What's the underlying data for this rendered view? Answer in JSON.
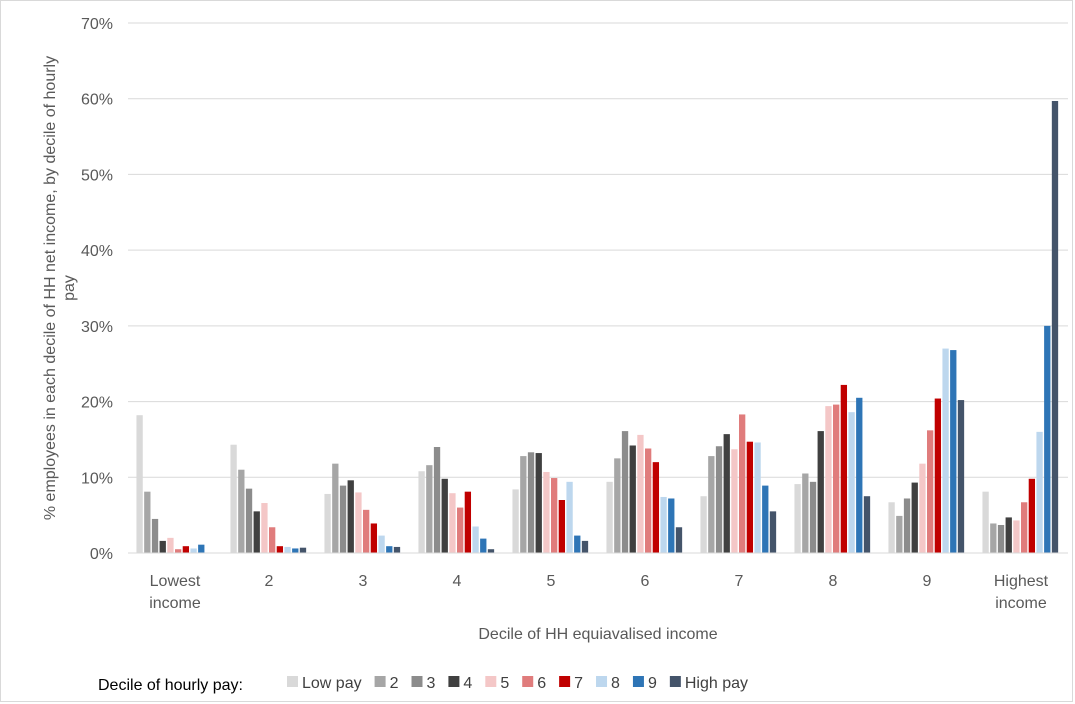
{
  "chart_data": {
    "type": "bar",
    "xlabel": "Decile of HH equiavalised income",
    "ylabel": "% employees in each decile of HH net income, by decile of hourly pay",
    "ylim": [
      0,
      70
    ],
    "yticks": [
      "0%",
      "10%",
      "20%",
      "30%",
      "40%",
      "50%",
      "60%",
      "70%"
    ],
    "grid": true,
    "legend_title": "Decile of hourly pay:",
    "legend_position": "bottom",
    "categories": [
      [
        "Lowest",
        "income"
      ],
      [
        "2"
      ],
      [
        "3"
      ],
      [
        "4"
      ],
      [
        "5"
      ],
      [
        "6"
      ],
      [
        "7"
      ],
      [
        "8"
      ],
      [
        "9"
      ],
      [
        "Highest",
        "income"
      ]
    ],
    "series": [
      {
        "name": "Low pay",
        "color": "#d9d9d9",
        "values": [
          18.2,
          14.3,
          7.8,
          10.8,
          8.4,
          9.4,
          7.5,
          9.1,
          6.7,
          8.1
        ]
      },
      {
        "name": "2",
        "color": "#a6a6a6",
        "values": [
          8.1,
          11.0,
          11.8,
          11.6,
          12.8,
          12.5,
          12.8,
          10.5,
          4.9,
          3.9
        ]
      },
      {
        "name": "3",
        "color": "#8c8c8c",
        "values": [
          4.5,
          8.5,
          8.9,
          14.0,
          13.3,
          16.1,
          14.1,
          9.4,
          7.2,
          3.7
        ]
      },
      {
        "name": "4",
        "color": "#404040",
        "values": [
          1.6,
          5.5,
          9.6,
          9.8,
          13.2,
          14.2,
          15.7,
          16.1,
          9.3,
          4.7
        ]
      },
      {
        "name": "5",
        "color": "#f4c7c7",
        "values": [
          2.0,
          6.6,
          8.0,
          7.9,
          10.7,
          15.6,
          13.7,
          19.4,
          11.8,
          4.3
        ]
      },
      {
        "name": "6",
        "color": "#e07c7c",
        "values": [
          0.5,
          3.4,
          5.7,
          6.0,
          9.9,
          13.8,
          18.3,
          19.6,
          16.2,
          6.7
        ]
      },
      {
        "name": "7",
        "color": "#c00000",
        "values": [
          0.9,
          0.9,
          3.9,
          8.1,
          7.0,
          12.0,
          14.7,
          22.2,
          20.4,
          9.8
        ]
      },
      {
        "name": "8",
        "color": "#bdd7ee",
        "values": [
          0.6,
          0.8,
          2.3,
          3.5,
          9.4,
          7.4,
          14.6,
          18.6,
          27.0,
          16.0
        ]
      },
      {
        "name": "9",
        "color": "#2e75b6",
        "values": [
          1.1,
          0.6,
          0.9,
          1.9,
          2.3,
          7.2,
          8.9,
          20.5,
          26.8,
          30.0
        ]
      },
      {
        "name": "High pay",
        "color": "#44546a",
        "values": [
          0.0,
          0.7,
          0.8,
          0.5,
          1.6,
          3.4,
          5.5,
          7.5,
          20.2,
          59.7
        ]
      }
    ]
  }
}
